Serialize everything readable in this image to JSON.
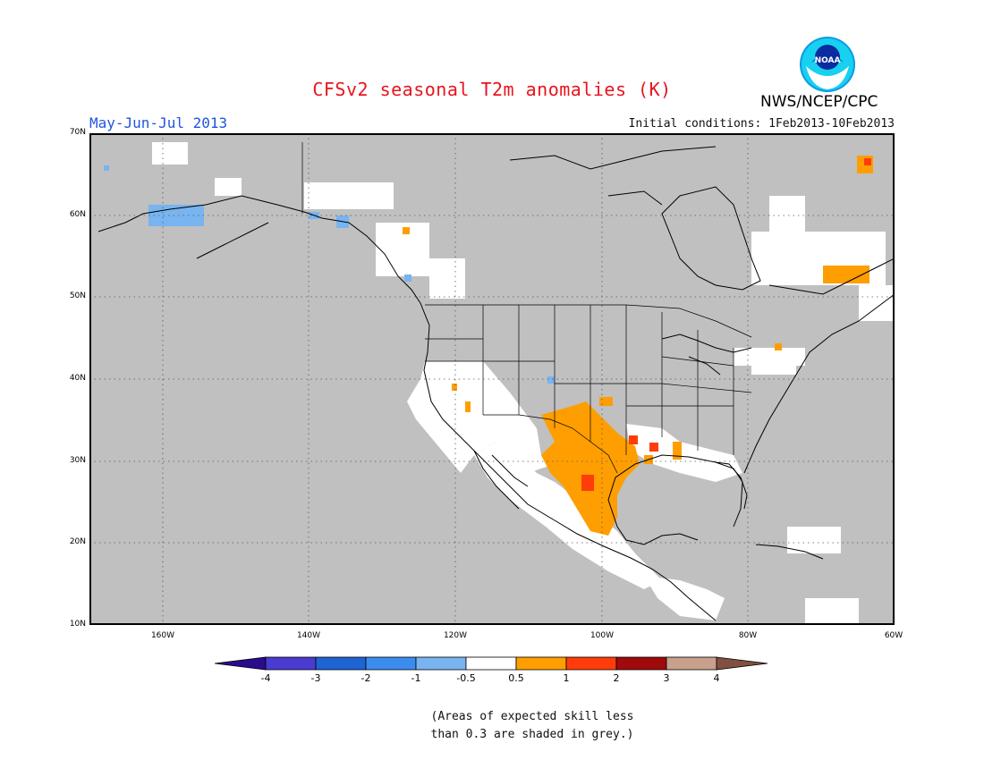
{
  "header": {
    "title": "CFSv2 seasonal T2m anomalies (K)",
    "season": "May-Jun-Jul 2013",
    "initial_conditions": "Initial conditions: 1Feb2013-10Feb2013",
    "agency": "NWS/NCEP/CPC",
    "logo_text": "NOAA"
  },
  "map": {
    "lat_labels": [
      "70N",
      "60N",
      "50N",
      "40N",
      "30N",
      "20N",
      "10N"
    ],
    "lon_labels": [
      "160W",
      "140W",
      "120W",
      "100W",
      "80W",
      "60W"
    ],
    "lat_range": [
      10,
      70
    ],
    "lon_range": [
      -170,
      -60
    ],
    "colors": {
      "skill_grey": "#c0c0c0",
      "land_white": "#ffffff",
      "warm_05_1": "#ff9e00",
      "warm_1_2": "#ff3c0a",
      "cool_m1_m05": "#78b4f0"
    }
  },
  "colorbar": {
    "labels": [
      "-4",
      "-3",
      "-2",
      "-1",
      "-0.5",
      "0.5",
      "1",
      "2",
      "3",
      "4"
    ],
    "colors": [
      "#2a0c8c",
      "#4a3cd0",
      "#1e64d2",
      "#3c8cf0",
      "#78b4f0",
      "#ffffff",
      "#ff9e00",
      "#ff3c0a",
      "#a00a0a",
      "#c8a08c",
      "#805040"
    ]
  },
  "note": {
    "line1": "(Areas of expected skill less",
    "line2": "than 0.3 are shaded in grey.)"
  }
}
